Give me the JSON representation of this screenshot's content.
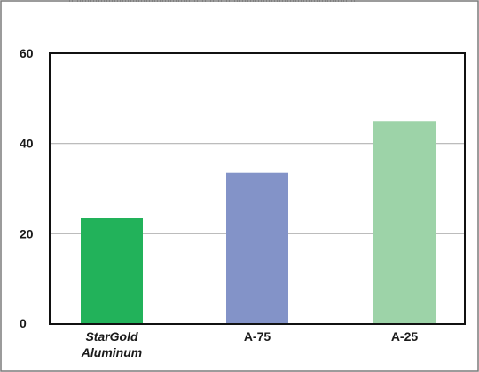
{
  "chart_data": {
    "type": "bar",
    "categories": [
      {
        "lines": [
          "StarGold",
          "Aluminum"
        ],
        "italic": true
      },
      {
        "lines": [
          "A-75"
        ],
        "italic": false
      },
      {
        "lines": [
          "A-25"
        ],
        "italic": false
      }
    ],
    "values": [
      23.5,
      33.5,
      45
    ],
    "bar_colors": [
      "#22b25a",
      "#8393c8",
      "#9dd3a8"
    ],
    "ylim": [
      0,
      60
    ],
    "yticks": [
      0,
      20,
      40,
      60
    ],
    "grid": true,
    "gridlines_at": [
      20,
      40
    ],
    "title": "",
    "xlabel": "",
    "ylabel": ""
  }
}
